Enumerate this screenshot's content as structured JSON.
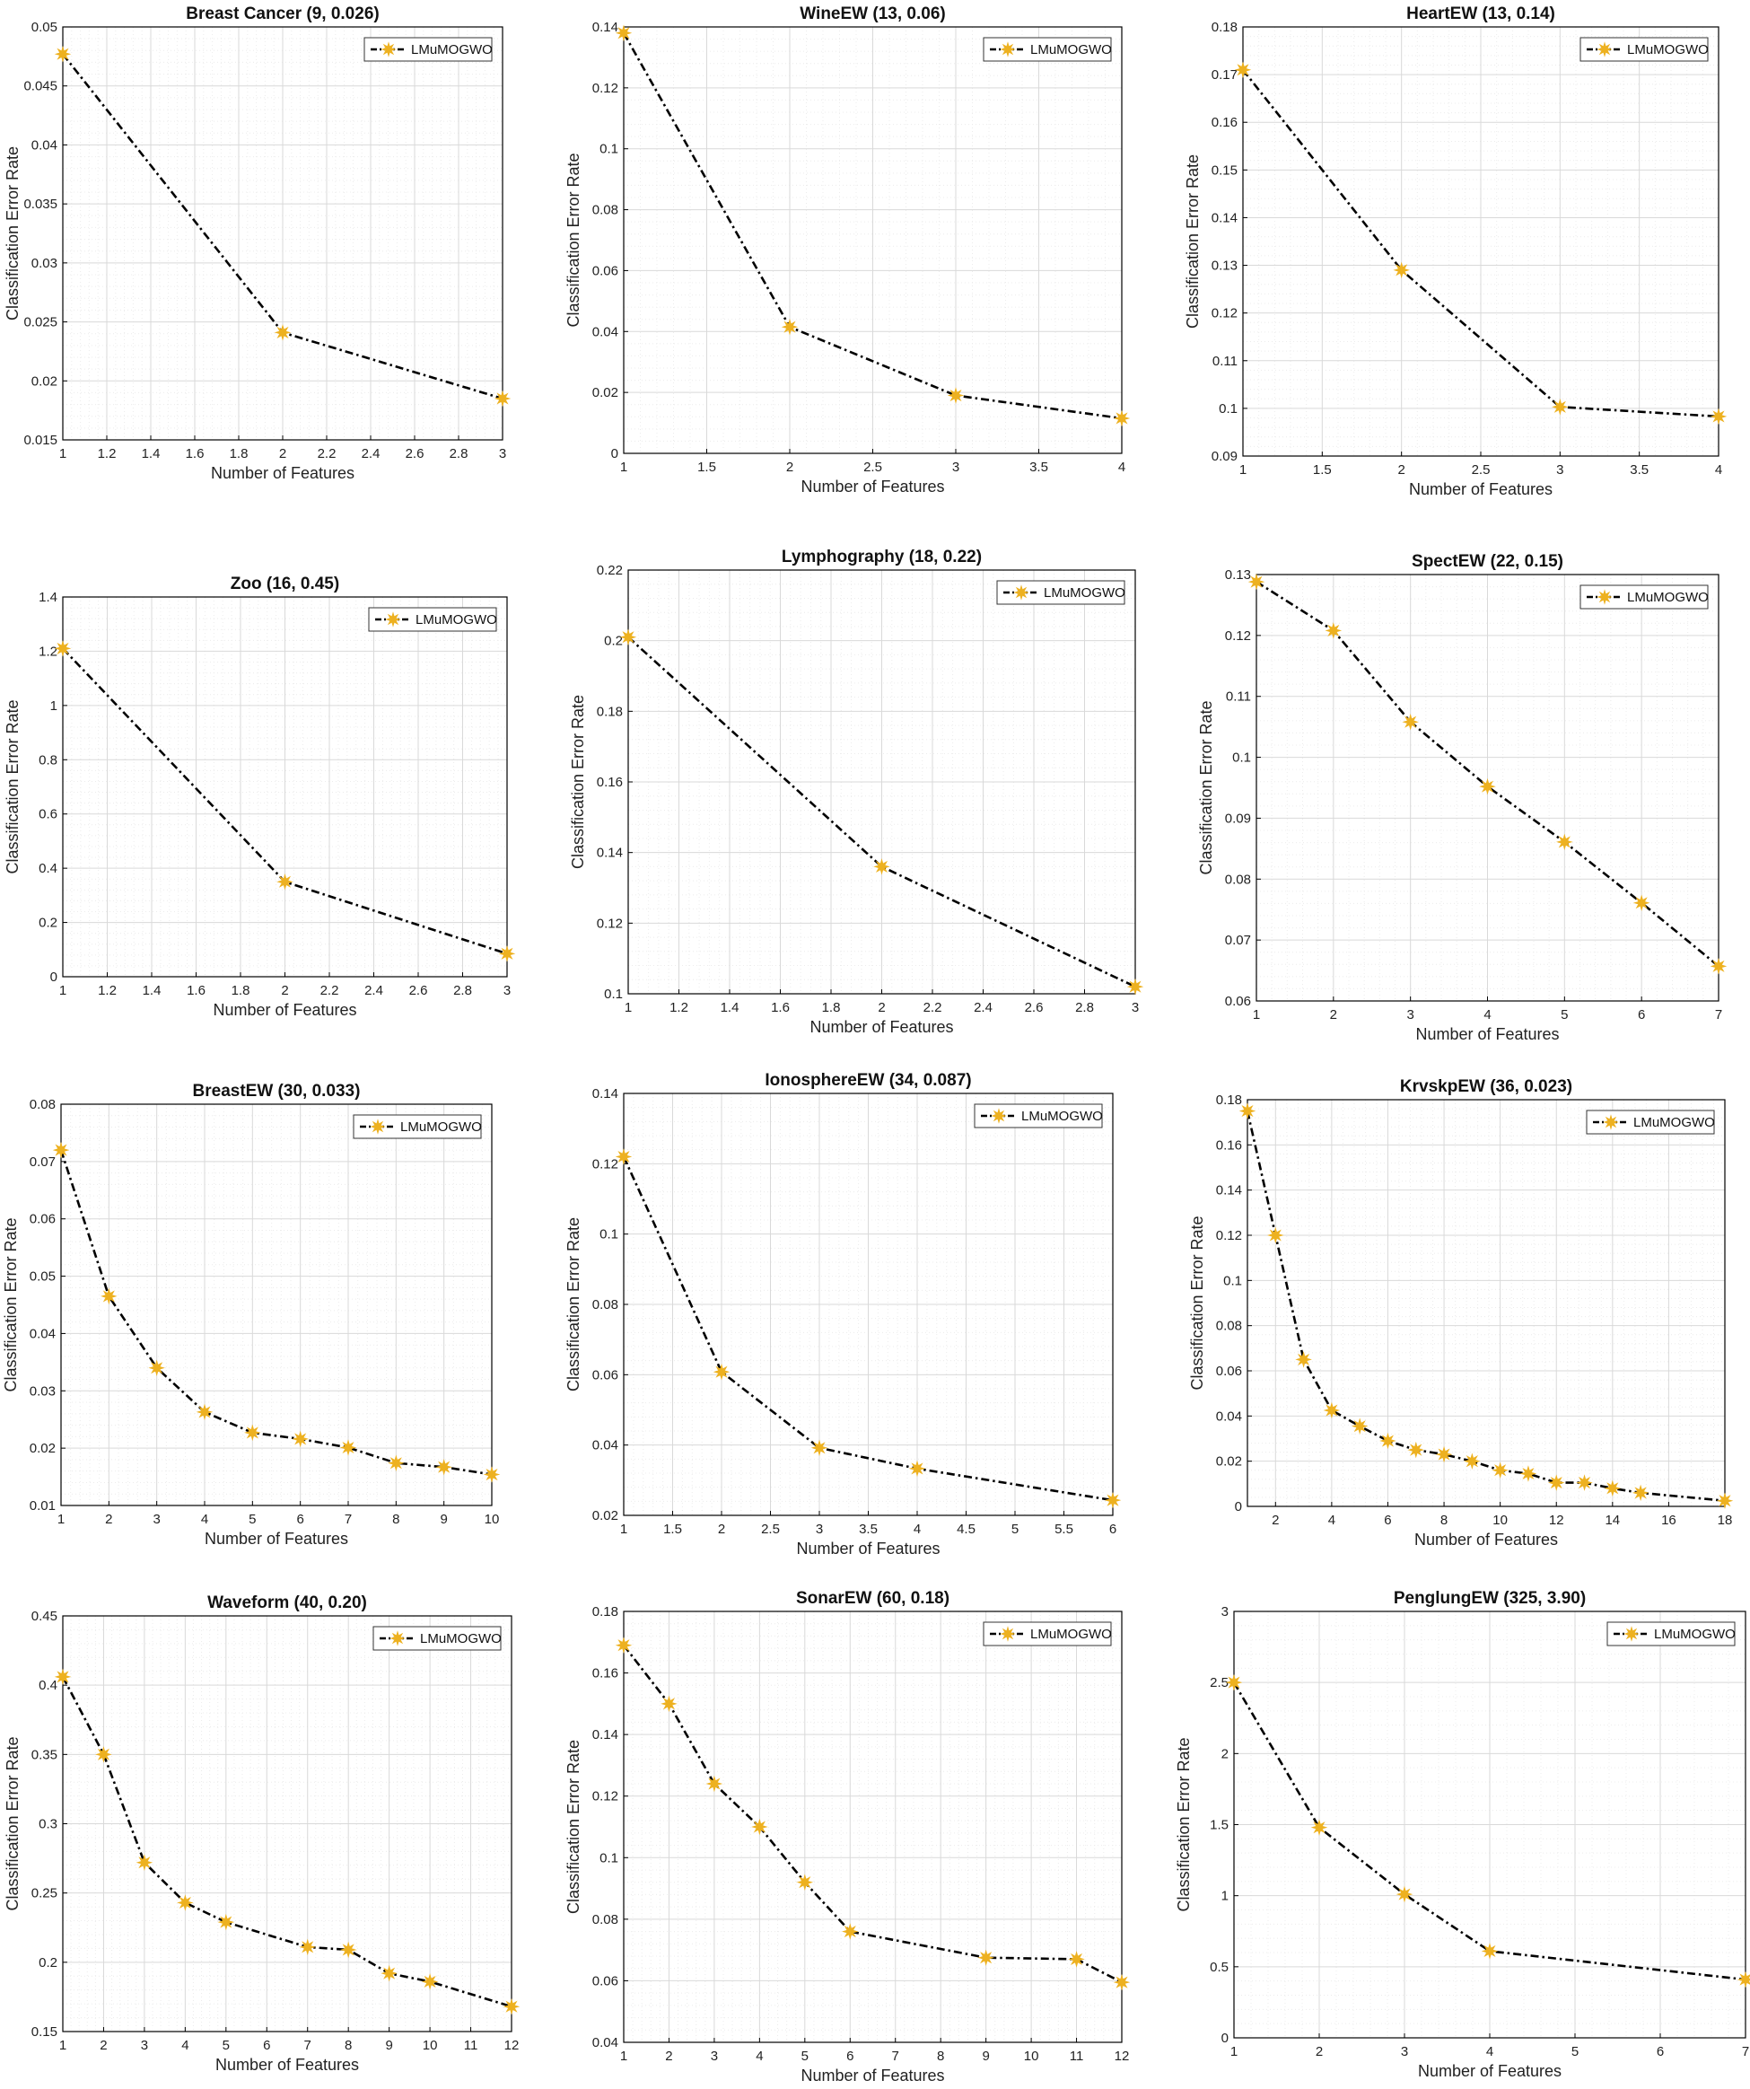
{
  "colors": {
    "line": "#000000",
    "marker": "#EDB120",
    "grid_major": "#d9d9d9",
    "grid_minor": "#ececec",
    "axes": "#000000"
  },
  "chart_data": [
    {
      "type": "line",
      "title": "Breast Cancer (9, 0.026)",
      "xlabel": "Number of Features",
      "ylabel": "Classification Error Rate",
      "legend": "LMuMOGWO",
      "legend_position": "top-right",
      "grid": true,
      "xlim": [
        1,
        3
      ],
      "ylim": [
        0.015,
        0.05
      ],
      "xticks": [
        1,
        1.2,
        1.4,
        1.6,
        1.8,
        2,
        2.2,
        2.4,
        2.6,
        2.8,
        3
      ],
      "xtick_labels": [
        "1",
        "1.2",
        "1.4",
        "1.6",
        "1.8",
        "2",
        "2.2",
        "2.4",
        "2.6",
        "2.8",
        "3"
      ],
      "yticks": [
        0.015,
        0.02,
        0.025,
        0.03,
        0.035,
        0.04,
        0.045,
        0.05
      ],
      "ytick_labels": [
        "0.015",
        "0.02",
        "0.025",
        "0.03",
        "0.035",
        "0.04",
        "0.045",
        "0.05"
      ],
      "x": [
        1,
        2,
        3
      ],
      "y": [
        0.0477,
        0.0241,
        0.0185
      ]
    },
    {
      "type": "line",
      "title": "WineEW (13, 0.06)",
      "xlabel": "Number of Features",
      "ylabel": "Classification Error Rate",
      "legend": "LMuMOGWO",
      "legend_position": "top-right",
      "grid": true,
      "xlim": [
        1,
        4
      ],
      "ylim": [
        0,
        0.14
      ],
      "xticks": [
        1,
        1.5,
        2,
        2.5,
        3,
        3.5,
        4
      ],
      "xtick_labels": [
        "1",
        "1.5",
        "2",
        "2.5",
        "3",
        "3.5",
        "4"
      ],
      "yticks": [
        0,
        0.02,
        0.04,
        0.06,
        0.08,
        0.1,
        0.12,
        0.14
      ],
      "ytick_labels": [
        "0",
        "0.02",
        "0.04",
        "0.06",
        "0.08",
        "0.1",
        "0.12",
        "0.14"
      ],
      "x": [
        1,
        2,
        3,
        4
      ],
      "y": [
        0.138,
        0.0415,
        0.019,
        0.0115
      ]
    },
    {
      "type": "line",
      "title": "HeartEW (13, 0.14)",
      "xlabel": "Number of Features",
      "ylabel": "Classification Error Rate",
      "legend": "LMuMOGWO",
      "legend_position": "top-right",
      "grid": true,
      "xlim": [
        1,
        4
      ],
      "ylim": [
        0.09,
        0.18
      ],
      "xticks": [
        1,
        1.5,
        2,
        2.5,
        3,
        3.5,
        4
      ],
      "xtick_labels": [
        "1",
        "1.5",
        "2",
        "2.5",
        "3",
        "3.5",
        "4"
      ],
      "yticks": [
        0.09,
        0.1,
        0.11,
        0.12,
        0.13,
        0.14,
        0.15,
        0.16,
        0.17,
        0.18
      ],
      "ytick_labels": [
        "0.09",
        "0.1",
        "0.11",
        "0.12",
        "0.13",
        "0.14",
        "0.15",
        "0.16",
        "0.17",
        "0.18"
      ],
      "x": [
        1,
        2,
        3,
        4
      ],
      "y": [
        0.171,
        0.129,
        0.1003,
        0.0983
      ]
    },
    {
      "type": "line",
      "title": "Zoo (16, 0.45)",
      "xlabel": "Number of Features",
      "ylabel": "Classification Error Rate",
      "legend": "LMuMOGWO",
      "legend_position": "top-right",
      "grid": true,
      "xlim": [
        1,
        3
      ],
      "ylim": [
        0,
        1.4
      ],
      "xticks": [
        1,
        1.2,
        1.4,
        1.6,
        1.8,
        2,
        2.2,
        2.4,
        2.6,
        2.8,
        3
      ],
      "xtick_labels": [
        "1",
        "1.2",
        "1.4",
        "1.6",
        "1.8",
        "2",
        "2.2",
        "2.4",
        "2.6",
        "2.8",
        "3"
      ],
      "yticks": [
        0,
        0.2,
        0.4,
        0.6,
        0.8,
        1,
        1.2,
        1.4
      ],
      "ytick_labels": [
        "0",
        "0.2",
        "0.4",
        "0.6",
        "0.8",
        "1",
        "1.2",
        "1.4"
      ],
      "x": [
        1,
        2,
        3
      ],
      "y": [
        1.21,
        0.35,
        0.085
      ]
    },
    {
      "type": "line",
      "title": "Lymphography (18, 0.22)",
      "xlabel": "Number of Features",
      "ylabel": "Classification Error Rate",
      "legend": "LMuMOGWO",
      "legend_position": "top-right",
      "grid": true,
      "xlim": [
        1,
        3
      ],
      "ylim": [
        0.1,
        0.22
      ],
      "xticks": [
        1,
        1.2,
        1.4,
        1.6,
        1.8,
        2,
        2.2,
        2.4,
        2.6,
        2.8,
        3
      ],
      "xtick_labels": [
        "1",
        "1.2",
        "1.4",
        "1.6",
        "1.8",
        "2",
        "2.2",
        "2.4",
        "2.6",
        "2.8",
        "3"
      ],
      "yticks": [
        0.1,
        0.12,
        0.14,
        0.16,
        0.18,
        0.2,
        0.22
      ],
      "ytick_labels": [
        "0.1",
        "0.12",
        "0.14",
        "0.16",
        "0.18",
        "0.2",
        "0.22"
      ],
      "x": [
        1,
        2,
        3
      ],
      "y": [
        0.201,
        0.136,
        0.102
      ]
    },
    {
      "type": "line",
      "title": "SpectEW (22, 0.15)",
      "xlabel": "Number of Features",
      "ylabel": "Classification Error Rate",
      "legend": "LMuMOGWO",
      "legend_position": "top-right",
      "grid": true,
      "xlim": [
        1,
        7
      ],
      "ylim": [
        0.06,
        0.13
      ],
      "xticks": [
        1,
        2,
        3,
        4,
        5,
        6,
        7
      ],
      "xtick_labels": [
        "1",
        "2",
        "3",
        "4",
        "5",
        "6",
        "7"
      ],
      "yticks": [
        0.06,
        0.07,
        0.08,
        0.09,
        0.1,
        0.11,
        0.12,
        0.13
      ],
      "ytick_labels": [
        "0.06",
        "0.07",
        "0.08",
        "0.09",
        "0.1",
        "0.11",
        "0.12",
        "0.13"
      ],
      "x": [
        1,
        2,
        3,
        4,
        5,
        6,
        7
      ],
      "y": [
        0.1288,
        0.1208,
        0.1058,
        0.0952,
        0.0861,
        0.0761,
        0.0657
      ]
    },
    {
      "type": "line",
      "title": "BreastEW (30, 0.033)",
      "xlabel": "Number of Features",
      "ylabel": "Classification Error Rate",
      "legend": "LMuMOGWO",
      "legend_position": "top-right",
      "grid": true,
      "xlim": [
        1,
        10
      ],
      "ylim": [
        0.01,
        0.08
      ],
      "xticks": [
        1,
        2,
        3,
        4,
        5,
        6,
        7,
        8,
        9,
        10
      ],
      "xtick_labels": [
        "1",
        "2",
        "3",
        "4",
        "5",
        "6",
        "7",
        "8",
        "9",
        "10"
      ],
      "yticks": [
        0.01,
        0.02,
        0.03,
        0.04,
        0.05,
        0.06,
        0.07,
        0.08
      ],
      "ytick_labels": [
        "0.01",
        "0.02",
        "0.03",
        "0.04",
        "0.05",
        "0.06",
        "0.07",
        "0.08"
      ],
      "x": [
        1,
        2,
        3,
        4,
        5,
        6,
        7,
        8,
        9,
        10
      ],
      "y": [
        0.072,
        0.0465,
        0.034,
        0.0263,
        0.0227,
        0.0216,
        0.0201,
        0.0174,
        0.0167,
        0.0154
      ]
    },
    {
      "type": "line",
      "title": "IonosphereEW (34, 0.087)",
      "xlabel": "Number of Features",
      "ylabel": "Classification Error Rate",
      "legend": "LMuMOGWO",
      "legend_position": "top-right",
      "grid": true,
      "xlim": [
        1,
        6
      ],
      "ylim": [
        0.02,
        0.14
      ],
      "xticks": [
        1,
        1.5,
        2,
        2.5,
        3,
        3.5,
        4,
        4.5,
        5,
        5.5,
        6
      ],
      "xtick_labels": [
        "1",
        "1.5",
        "2",
        "2.5",
        "3",
        "3.5",
        "4",
        "4.5",
        "5",
        "5.5",
        "6"
      ],
      "yticks": [
        0.02,
        0.04,
        0.06,
        0.08,
        0.1,
        0.12,
        0.14
      ],
      "ytick_labels": [
        "0.02",
        "0.04",
        "0.06",
        "0.08",
        "0.1",
        "0.12",
        "0.14"
      ],
      "x": [
        1,
        2,
        3,
        4,
        6
      ],
      "y": [
        0.122,
        0.0608,
        0.0392,
        0.0333,
        0.0243
      ]
    },
    {
      "type": "line",
      "title": "KrvskpEW (36, 0.023)",
      "xlabel": "Number of Features",
      "ylabel": "Classification Error Rate",
      "legend": "LMuMOGWO",
      "legend_position": "top-right",
      "grid": true,
      "xlim": [
        1,
        18
      ],
      "ylim": [
        0,
        0.18
      ],
      "xticks": [
        2,
        4,
        6,
        8,
        10,
        12,
        14,
        16,
        18
      ],
      "xtick_labels": [
        "2",
        "4",
        "6",
        "8",
        "10",
        "12",
        "14",
        "16",
        "18"
      ],
      "yticks": [
        0,
        0.02,
        0.04,
        0.06,
        0.08,
        0.1,
        0.12,
        0.14,
        0.16,
        0.18
      ],
      "ytick_labels": [
        "0",
        "0.02",
        "0.04",
        "0.06",
        "0.08",
        "0.1",
        "0.12",
        "0.14",
        "0.16",
        "0.18"
      ],
      "x": [
        1,
        2,
        3,
        4,
        5,
        6,
        7,
        8,
        9,
        10,
        11,
        12,
        13,
        14,
        15,
        18
      ],
      "y": [
        0.175,
        0.12,
        0.065,
        0.0425,
        0.0355,
        0.029,
        0.025,
        0.023,
        0.02,
        0.016,
        0.0145,
        0.0105,
        0.0105,
        0.008,
        0.006,
        0.0025
      ]
    },
    {
      "type": "line",
      "title": "Waveform (40, 0.20)",
      "xlabel": "Number of Features",
      "ylabel": "Classification Error Rate",
      "legend": "LMuMOGWO",
      "legend_position": "top-right",
      "grid": true,
      "xlim": [
        1,
        12
      ],
      "ylim": [
        0.15,
        0.45
      ],
      "xticks": [
        1,
        2,
        3,
        4,
        5,
        6,
        7,
        8,
        9,
        10,
        11,
        12
      ],
      "xtick_labels": [
        "1",
        "2",
        "3",
        "4",
        "5",
        "6",
        "7",
        "8",
        "9",
        "10",
        "11",
        "12"
      ],
      "yticks": [
        0.15,
        0.2,
        0.25,
        0.3,
        0.35,
        0.4,
        0.45
      ],
      "ytick_labels": [
        "0.15",
        "0.2",
        "0.25",
        "0.3",
        "0.35",
        "0.4",
        "0.45"
      ],
      "x": [
        1,
        2,
        3,
        4,
        5,
        7,
        8,
        9,
        10,
        12
      ],
      "y": [
        0.406,
        0.35,
        0.272,
        0.243,
        0.229,
        0.211,
        0.209,
        0.192,
        0.186,
        0.168
      ]
    },
    {
      "type": "line",
      "title": "SonarEW (60, 0.18)",
      "xlabel": "Number of Features",
      "ylabel": "Classification Error Rate",
      "legend": "LMuMOGWO",
      "legend_position": "top-right",
      "grid": true,
      "xlim": [
        1,
        12
      ],
      "ylim": [
        0.04,
        0.18
      ],
      "xticks": [
        1,
        2,
        3,
        4,
        5,
        6,
        7,
        8,
        9,
        10,
        11,
        12
      ],
      "xtick_labels": [
        "1",
        "2",
        "3",
        "4",
        "5",
        "6",
        "7",
        "8",
        "9",
        "10",
        "11",
        "12"
      ],
      "yticks": [
        0.04,
        0.06,
        0.08,
        0.1,
        0.12,
        0.14,
        0.16,
        0.18
      ],
      "ytick_labels": [
        "0.04",
        "0.06",
        "0.08",
        "0.1",
        "0.12",
        "0.14",
        "0.16",
        "0.18"
      ],
      "x": [
        1,
        2,
        3,
        4,
        5,
        6,
        9,
        11,
        12
      ],
      "y": [
        0.169,
        0.15,
        0.124,
        0.11,
        0.092,
        0.076,
        0.0675,
        0.067,
        0.0595
      ]
    },
    {
      "type": "line",
      "title": "PenglungEW (325, 3.90)",
      "xlabel": "Number of Features",
      "ylabel": "Classification Error Rate",
      "legend": "LMuMOGWO",
      "legend_position": "top-right",
      "grid": true,
      "xlim": [
        1,
        7
      ],
      "ylim": [
        0,
        3
      ],
      "xticks": [
        1,
        2,
        3,
        4,
        5,
        6,
        7
      ],
      "xtick_labels": [
        "1",
        "2",
        "3",
        "4",
        "5",
        "6",
        "7"
      ],
      "yticks": [
        0,
        0.5,
        1,
        1.5,
        2,
        2.5,
        3
      ],
      "ytick_labels": [
        "0",
        "0.5",
        "1",
        "1.5",
        "2",
        "2.5",
        "3"
      ],
      "x": [
        1,
        2,
        3,
        4,
        7
      ],
      "y": [
        2.5,
        1.48,
        1.01,
        0.61,
        0.41
      ]
    }
  ]
}
